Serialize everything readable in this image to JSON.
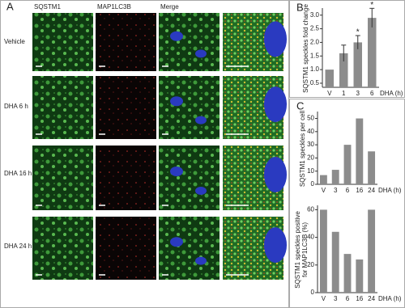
{
  "panel_labels": [
    "A",
    "B",
    "C"
  ],
  "columns": [
    "SQSTM1",
    "MAP1LC3B",
    "Merge"
  ],
  "rows": [
    "Vehicle",
    "DHA 6 h",
    "DHA 16 h",
    "DHA 24 h"
  ],
  "chart_data": [
    {
      "type": "bar",
      "ylabel": "SQSTM1 speckles fold change",
      "xlabel": "DHA (h)",
      "categories": [
        "V",
        "1",
        "3",
        "6"
      ],
      "values": [
        1.0,
        1.6,
        2.0,
        2.9
      ],
      "errors": [
        0,
        0.3,
        0.25,
        0.35
      ],
      "markers": [
        null,
        null,
        "*",
        "*"
      ],
      "color": "#8c8c8c",
      "ylim": [
        0.35,
        3.2
      ],
      "yticks": [
        0.5,
        {
          "value": 1,
          "label": "1.0"
        },
        1.5,
        {
          "value": 2,
          "label": "2.0"
        },
        2.5,
        {
          "value": 3,
          "label": "3.0"
        }
      ],
      "grid": false
    },
    {
      "type": "bar",
      "ylabel": "SQSTM1 speckles per cell",
      "xlabel": "DHA (h)",
      "categories": [
        "V",
        "3",
        "6",
        "16",
        "24"
      ],
      "values": [
        7,
        11,
        30,
        50,
        25
      ],
      "color": "#8c8c8c",
      "ylim": [
        0,
        54
      ],
      "yticks": [
        0,
        10,
        20,
        30,
        40,
        50
      ],
      "grid": false
    },
    {
      "type": "bar",
      "ylabel": [
        "SQSTM1 speckles positive",
        "for MAP1LC3B (%)"
      ],
      "xlabel": "DHA (h)",
      "categories": [
        "V",
        "3",
        "6",
        "16",
        "24"
      ],
      "values": [
        60,
        44,
        28,
        24,
        60
      ],
      "color": "#8c8c8c",
      "ylim": [
        0,
        62
      ],
      "yticks": [
        0,
        20,
        40,
        60
      ],
      "grid": false
    }
  ]
}
